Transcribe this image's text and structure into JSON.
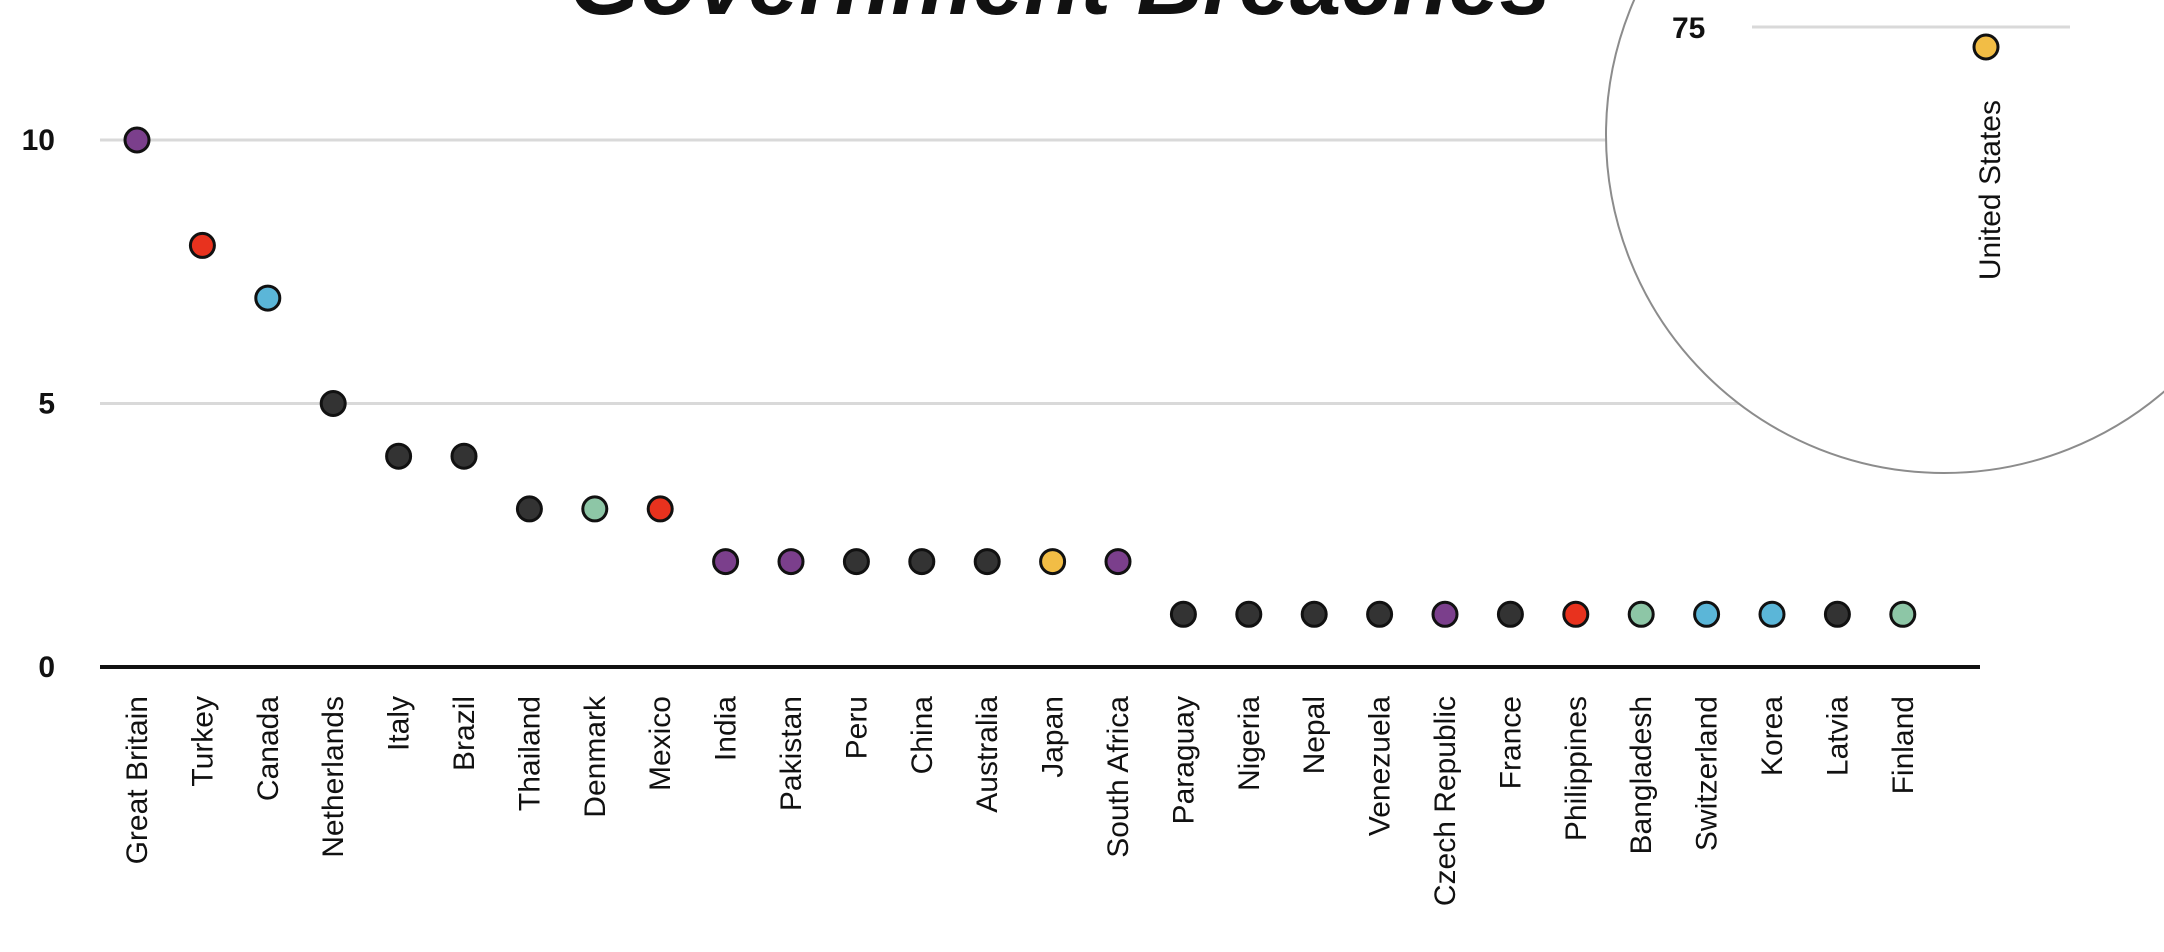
{
  "chart_data": {
    "type": "scatter",
    "title": "Government Breaches",
    "xlabel": "",
    "ylabel": "",
    "ylim": [
      0,
      10
    ],
    "yticks": [
      "0",
      "5",
      "10"
    ],
    "grid": true,
    "categories": [
      "Great Britain",
      "Turkey",
      "Canada",
      "Netherlands",
      "Italy",
      "Brazil",
      "Thailand",
      "Denmark",
      "Mexico",
      "India",
      "Pakistan",
      "Peru",
      "China",
      "Australia",
      "Japan",
      "South Africa",
      "Paraguay",
      "Nigeria",
      "Nepal",
      "Venezuela",
      "Czech Republic",
      "France",
      "Philippines",
      "Bangladesh",
      "Switzerland",
      "Korea",
      "Latvia",
      "Finland"
    ],
    "values": [
      10,
      8,
      7,
      5,
      4,
      4,
      3,
      3,
      3,
      2,
      2,
      2,
      2,
      2,
      2,
      2,
      1,
      1,
      1,
      1,
      1,
      1,
      1,
      1,
      1,
      1,
      1,
      1
    ],
    "point_colors": [
      "#7b3f8c",
      "#e8321e",
      "#5bb6d8",
      "#333333",
      "#333333",
      "#333333",
      "#333333",
      "#8dc6a6",
      "#e8321e",
      "#7b3f8c",
      "#7b3f8c",
      "#333333",
      "#333333",
      "#333333",
      "#f2bd45",
      "#7b3f8c",
      "#333333",
      "#333333",
      "#333333",
      "#333333",
      "#7b3f8c",
      "#333333",
      "#e8321e",
      "#8dc6a6",
      "#5bb6d8",
      "#5bb6d8",
      "#333333",
      "#8dc6a6"
    ],
    "inset": {
      "category": "United States",
      "value": 75,
      "tick_label": "75",
      "color": "#f2bd45"
    }
  }
}
